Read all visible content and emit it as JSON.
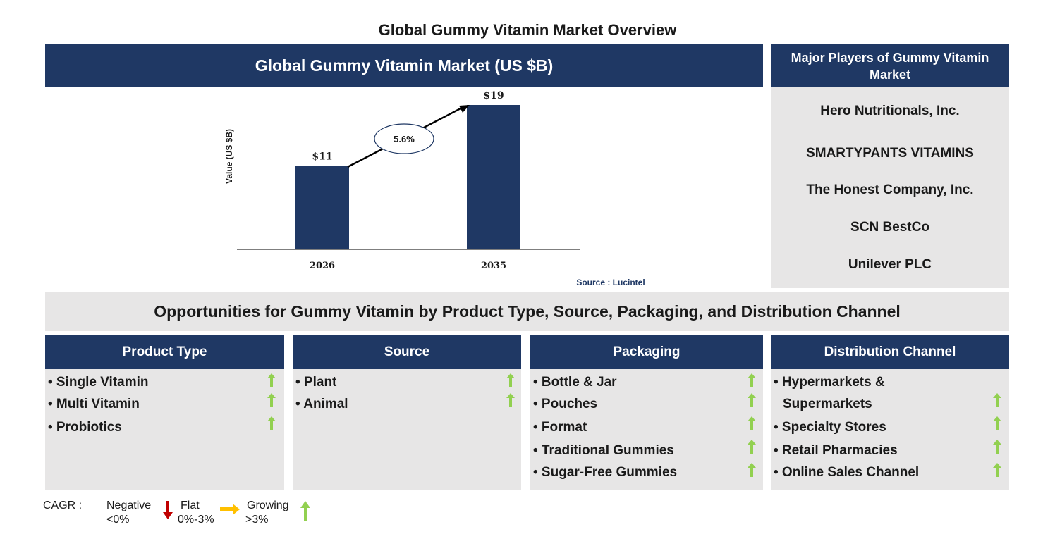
{
  "page_title": "Global Gummy Vitamin Market Overview",
  "chart_header": "Global Gummy Vitamin Market (US $B)",
  "chart_data": {
    "type": "bar",
    "categories": [
      "2026",
      "2035"
    ],
    "values": [
      11,
      19
    ],
    "value_labels": [
      "$11",
      "$19"
    ],
    "ylabel": "Value (US $B)",
    "cagr_label": "5.6%",
    "source": "Source : Lucintel",
    "colors": {
      "bar": "#1f3864"
    }
  },
  "players": {
    "header": "Major Players of Gummy Vitamin Market",
    "items": [
      "Hero Nutritionals, Inc.",
      "SMARTYPANTS VITAMINS",
      "The Honest Company, Inc.",
      "SCN BestCo",
      "Unilever PLC"
    ]
  },
  "opportunities_title": "Opportunities for Gummy Vitamin by Product Type, Source, Packaging, and Distribution Channel",
  "segments": [
    {
      "title": "Product Type",
      "items": [
        {
          "label": "• Single Vitamin",
          "trend": "growing"
        },
        {
          "label": "• Multi Vitamin",
          "trend": "growing"
        },
        {
          "label": "• Probiotics",
          "trend": "growing"
        }
      ]
    },
    {
      "title": "Source",
      "items": [
        {
          "label": "• Plant",
          "trend": "growing"
        },
        {
          "label": "• Animal",
          "trend": "growing"
        }
      ]
    },
    {
      "title": "Packaging",
      "items": [
        {
          "label": "• Bottle & Jar",
          "trend": "growing"
        },
        {
          "label": "• Pouches",
          "trend": "growing"
        },
        {
          "label": "• Format",
          "trend": "growing"
        },
        {
          "label": "• Traditional Gummies",
          "trend": "growing"
        },
        {
          "label": "• Sugar-Free Gummies",
          "trend": "growing"
        }
      ]
    },
    {
      "title": "Distribution Channel",
      "items": [
        {
          "label": "• Hypermarkets &",
          "label_line2": "Supermarkets",
          "trend": "growing"
        },
        {
          "label": "• Specialty Stores",
          "trend": "growing"
        },
        {
          "label": "• Retail Pharmacies",
          "trend": "growing"
        },
        {
          "label": "• Online Sales Channel",
          "trend": "growing"
        }
      ]
    }
  ],
  "legend": {
    "cagr_label": "CAGR :",
    "negative_label": "Negative",
    "negative_range": "<0%",
    "flat_label": "Flat",
    "flat_range": "0%-3%",
    "growing_label": "Growing",
    "growing_range": ">3%"
  },
  "colors": {
    "navy": "#1f3864",
    "panel_grey": "#e7e6e6",
    "arrow_green": "#92d050",
    "arrow_red": "#c00000",
    "arrow_orange": "#ffc000"
  }
}
